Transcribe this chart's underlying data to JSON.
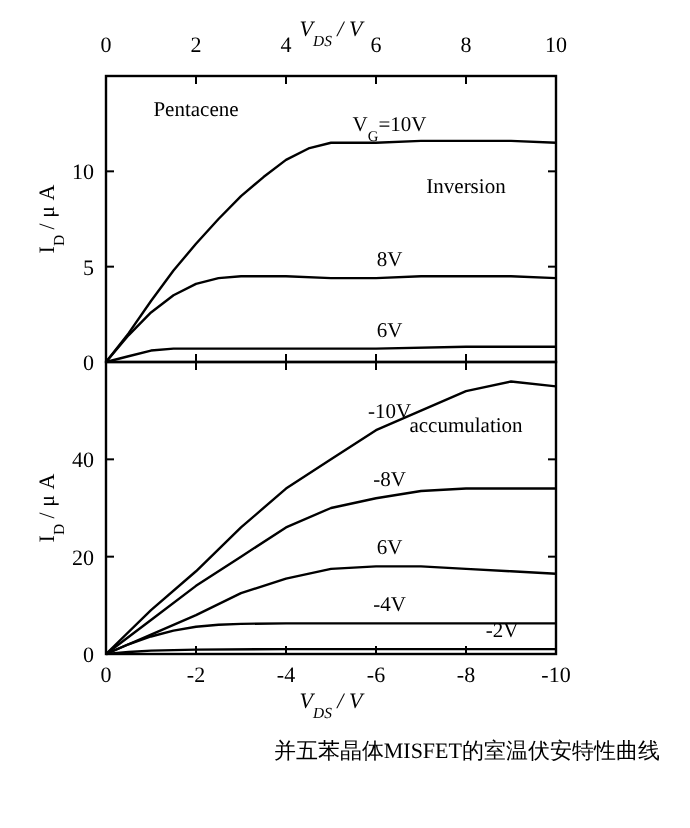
{
  "chart_data": [
    {
      "type": "line",
      "xlabel": "V$_{DS}$ / V",
      "ylabel": "I$_{D}$ / μ A",
      "xlim": [
        0,
        10
      ],
      "xticks": [
        0,
        2,
        4,
        6,
        8,
        10
      ],
      "ylim": [
        0,
        15
      ],
      "yticks": [
        0,
        5,
        10
      ],
      "grid": false,
      "legend": false,
      "marker": "none",
      "line_style": "solid",
      "series": [
        {
          "name": "V$_{G}$=10V",
          "color": "#000000",
          "x": [
            0,
            0.5,
            1,
            1.5,
            2,
            2.5,
            3,
            3.5,
            4,
            4.5,
            5,
            6,
            7,
            8,
            9,
            10
          ],
          "values": [
            0,
            1.5,
            3.2,
            4.8,
            6.2,
            7.5,
            8.7,
            9.7,
            10.6,
            11.2,
            11.5,
            11.5,
            11.6,
            11.6,
            11.6,
            11.5
          ]
        },
        {
          "name": "8V",
          "color": "#000000",
          "x": [
            0,
            0.5,
            1,
            1.5,
            2,
            2.5,
            3,
            4,
            5,
            6,
            7,
            8,
            9,
            10
          ],
          "values": [
            0,
            1.4,
            2.6,
            3.5,
            4.1,
            4.4,
            4.5,
            4.5,
            4.4,
            4.4,
            4.5,
            4.5,
            4.5,
            4.4
          ]
        },
        {
          "name": "6V",
          "color": "#000000",
          "x": [
            0,
            0.5,
            1,
            1.5,
            2,
            4,
            6,
            8,
            10
          ],
          "values": [
            0,
            0.3,
            0.6,
            0.7,
            0.7,
            0.7,
            0.7,
            0.8,
            0.8
          ]
        }
      ],
      "annotations": [
        "Pentacene",
        "Inversion"
      ]
    },
    {
      "type": "line",
      "xlabel": "V$_{DS}$ / V",
      "ylabel": "I$_{D}$ / μ A",
      "xlim": [
        0,
        -10
      ],
      "xticks": [
        0,
        -2,
        -4,
        -6,
        -8,
        -10
      ],
      "ylim": [
        0,
        60
      ],
      "yticks": [
        0,
        20,
        40
      ],
      "grid": false,
      "legend": false,
      "marker": "none",
      "line_style": "solid",
      "series": [
        {
          "name": "-10V",
          "color": "#000000",
          "x": [
            0,
            -1,
            -2,
            -3,
            -4,
            -5,
            -6,
            -7,
            -8,
            -9,
            -10
          ],
          "values": [
            0,
            9,
            17,
            26,
            34,
            40,
            46,
            50,
            54,
            56,
            55
          ]
        },
        {
          "name": "-8V",
          "color": "#000000",
          "x": [
            0,
            -1,
            -2,
            -3,
            -4,
            -5,
            -6,
            -7,
            -8,
            -9,
            -10
          ],
          "values": [
            0,
            7,
            14,
            20,
            26,
            30,
            32,
            33.5,
            34,
            34,
            34
          ]
        },
        {
          "name": "6V",
          "color": "#000000",
          "x": [
            0,
            -1,
            -2,
            -3,
            -4,
            -5,
            -6,
            -7,
            -8,
            -9,
            -10
          ],
          "values": [
            0,
            4,
            8,
            12.5,
            15.5,
            17.5,
            18,
            18,
            17.5,
            17,
            16.5
          ]
        },
        {
          "name": "-4V",
          "color": "#000000",
          "x": [
            0,
            -0.5,
            -1,
            -1.5,
            -2,
            -2.5,
            -3,
            -4,
            -6,
            -8,
            -10
          ],
          "values": [
            0,
            2,
            3.6,
            4.8,
            5.6,
            6,
            6.2,
            6.3,
            6.3,
            6.3,
            6.3
          ]
        },
        {
          "name": "-2V",
          "color": "#000000",
          "x": [
            0,
            -0.5,
            -1,
            -2,
            -4,
            -6,
            -8,
            -10
          ],
          "values": [
            0,
            0.4,
            0.7,
            0.9,
            1,
            1,
            1,
            1
          ]
        }
      ],
      "annotations": [
        "accumulation",
        "并五苯晶体MISFET的室温伏安特性曲线"
      ]
    }
  ]
}
